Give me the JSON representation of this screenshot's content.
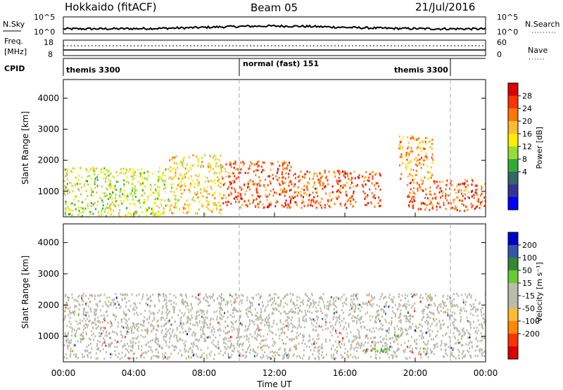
{
  "header": {
    "station": "Hokkaido (fitACF)",
    "beam": "Beam 05",
    "date": "21/Jul/2016"
  },
  "nsky_panel": {
    "left_label": "N.Sky",
    "left_top": "10^5",
    "left_bottom": "10^0",
    "right_top": "10^5",
    "right_bottom": "10^0",
    "right_label": "N.Search"
  },
  "freq_panel": {
    "left_label_1": "Freq.",
    "left_label_2": "[MHz]",
    "left_top": "18",
    "left_bottom": "8",
    "right_top": "60",
    "right_bottom": "0",
    "right_label": "Nave"
  },
  "cpid_panel": {
    "label": "CPID",
    "segments": [
      {
        "name": "themis 3300",
        "start_hour": 0,
        "end_hour": 10
      },
      {
        "name": "normal (fast) 151",
        "start_hour": 10,
        "end_hour": 19
      },
      {
        "name": "themis 3300",
        "start_hour": 19,
        "end_hour": 22
      }
    ],
    "divider_hours": [
      10,
      22
    ]
  },
  "power_panel": {
    "ylabel": "Slant Range [km]",
    "colorbar_title": "Power [dB]",
    "colorbar_ticks": [
      "28",
      "24",
      "20",
      "16",
      "12",
      "8",
      "4"
    ],
    "colorbar_colors": [
      "#dd0000",
      "#ff3300",
      "#ff7700",
      "#ffbb33",
      "#ffee00",
      "#99dd33",
      "#33aa33",
      "#336666",
      "#333399",
      "#0000ff"
    ]
  },
  "velocity_panel": {
    "ylabel": "Slant Range [km]",
    "colorbar_title": "Velocity [m s⁻¹]",
    "colorbar_ticks": [
      "200",
      "100",
      "50",
      "15",
      "-15",
      "-50",
      "-100",
      "-200"
    ],
    "colorbar_colors": [
      "#0000cc",
      "#3355aa",
      "#338833",
      "#66cc33",
      "#bbbbaa",
      "#bbbbaa",
      "#ffbb33",
      "#ff8800",
      "#ff3300",
      "#dd0000"
    ]
  },
  "chart_data": {
    "type": "heatmap",
    "xlabel": "Time UT",
    "x_ticks": [
      "00:00",
      "04:00",
      "08:00",
      "12:00",
      "16:00",
      "20:00",
      "00:00"
    ],
    "x_range_hours": [
      0,
      24
    ],
    "y_ticks": [
      1000,
      2000,
      3000,
      4000
    ],
    "y_range_km": [
      180,
      4600
    ],
    "power_regions_dB": [
      {
        "start_hour": 0,
        "end_hour": 6,
        "range_km": [
          200,
          1800
        ],
        "level_dB": 16
      },
      {
        "start_hour": 6,
        "end_hour": 9,
        "range_km": [
          300,
          2200
        ],
        "level_dB": 20
      },
      {
        "start_hour": 9,
        "end_hour": 13,
        "range_km": [
          500,
          2000
        ],
        "level_dB": 28
      },
      {
        "start_hour": 13,
        "end_hour": 18,
        "range_km": [
          500,
          1700
        ],
        "level_dB": 28
      },
      {
        "start_hour": 19.5,
        "end_hour": 24,
        "range_km": [
          400,
          1400
        ],
        "level_dB": 28
      },
      {
        "start_hour": 19,
        "end_hour": 21,
        "range_km": [
          1400,
          2800
        ],
        "level_dB": 24
      }
    ],
    "velocity_regions_ms": [
      {
        "start_hour": 0,
        "end_hour": 24,
        "range_km": [
          300,
          2400
        ],
        "velocity_ms": 0
      },
      {
        "start_hour": 17,
        "end_hour": 18.5,
        "range_km": [
          500,
          700
        ],
        "velocity_ms": 50
      }
    ]
  }
}
